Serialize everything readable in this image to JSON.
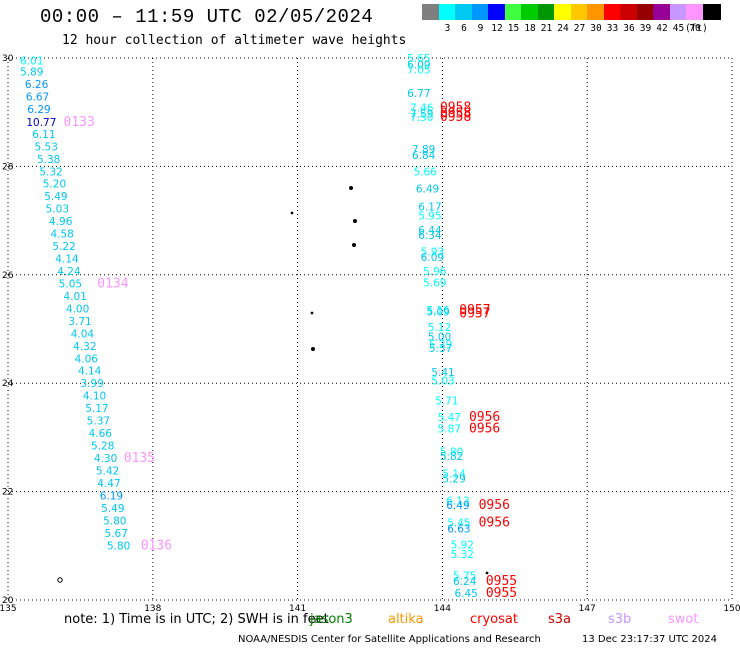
{
  "header": {
    "title": "00:00 – 11:59 UTC 02/05/2024",
    "subtitle": "12 hour collection of altimeter wave heights"
  },
  "legend": {
    "unit": "(ft)",
    "items": [
      {
        "label": "",
        "color": "#7f7f7f"
      },
      {
        "label": "3",
        "color": "#00ffff"
      },
      {
        "label": "6",
        "color": "#00c8f0"
      },
      {
        "label": "9",
        "color": "#0096ff"
      },
      {
        "label": "12",
        "color": "#0000ff"
      },
      {
        "label": "15",
        "color": "#40ff40"
      },
      {
        "label": "18",
        "color": "#00cc00"
      },
      {
        "label": "21",
        "color": "#009600"
      },
      {
        "label": "24",
        "color": "#ffff00"
      },
      {
        "label": "27",
        "color": "#ffc800"
      },
      {
        "label": "30",
        "color": "#ff9600"
      },
      {
        "label": "33",
        "color": "#ff0000"
      },
      {
        "label": "36",
        "color": "#cc0000"
      },
      {
        "label": "39",
        "color": "#960000"
      },
      {
        "label": "42",
        "color": "#960096"
      },
      {
        "label": "45",
        "color": "#c896ff"
      },
      {
        "label": "70",
        "color": "#ff96ff"
      },
      {
        "label": "",
        "color": "#000000"
      }
    ]
  },
  "map": {
    "lon_range": [
      135,
      150
    ],
    "lat_range": [
      20,
      30
    ],
    "lon_ticks": [
      "135",
      "138",
      "141",
      "144",
      "147",
      "150"
    ],
    "lat_ticks": [
      "30",
      "28",
      "26",
      "24",
      "22",
      "20"
    ],
    "grid": true
  },
  "tracks": {
    "left_values": [
      {
        "lat": 29.95,
        "lon": 135.25,
        "v": "6.01",
        "c": "#00ffff"
      },
      {
        "lat": 29.75,
        "lon": 135.25,
        "v": "5.89",
        "c": "#00c8f0"
      },
      {
        "lat": 29.52,
        "lon": 135.35,
        "v": "6.26",
        "c": "#0096ff"
      },
      {
        "lat": 29.29,
        "lon": 135.37,
        "v": "6.67",
        "c": "#0096ff"
      },
      {
        "lat": 29.06,
        "lon": 135.4,
        "v": "6.29",
        "c": "#0096ff"
      },
      {
        "lat": 28.82,
        "lon": 135.38,
        "v": "10.77",
        "c": "#0000c8"
      },
      {
        "lat": 28.6,
        "lon": 135.5,
        "v": "6.11",
        "c": "#00c8f0"
      },
      {
        "lat": 28.37,
        "lon": 135.55,
        "v": "5.53",
        "c": "#00c8f0"
      },
      {
        "lat": 28.14,
        "lon": 135.6,
        "v": "5.38",
        "c": "#00c8f0"
      },
      {
        "lat": 27.91,
        "lon": 135.65,
        "v": "5.32",
        "c": "#00c8f0"
      },
      {
        "lat": 27.68,
        "lon": 135.72,
        "v": "5.20",
        "c": "#00c8f0"
      },
      {
        "lat": 27.45,
        "lon": 135.75,
        "v": "5.49",
        "c": "#00c8f0"
      },
      {
        "lat": 27.22,
        "lon": 135.78,
        "v": "5.03",
        "c": "#00c8f0"
      },
      {
        "lat": 26.99,
        "lon": 135.85,
        "v": "4.96",
        "c": "#00c8f0"
      },
      {
        "lat": 26.76,
        "lon": 135.88,
        "v": "4.58",
        "c": "#00c8f0"
      },
      {
        "lat": 26.53,
        "lon": 135.92,
        "v": "5.22",
        "c": "#00c8f0"
      },
      {
        "lat": 26.3,
        "lon": 135.98,
        "v": "4.14",
        "c": "#00c8f0"
      },
      {
        "lat": 26.07,
        "lon": 136.02,
        "v": "4.24",
        "c": "#00c8f0"
      },
      {
        "lat": 25.84,
        "lon": 136.05,
        "v": "5.05",
        "c": "#00c8f0"
      },
      {
        "lat": 25.61,
        "lon": 136.15,
        "v": "4.01",
        "c": "#00c8f0"
      },
      {
        "lat": 25.38,
        "lon": 136.2,
        "v": "4.00",
        "c": "#00c8f0"
      },
      {
        "lat": 25.15,
        "lon": 136.25,
        "v": "3.71",
        "c": "#00c8f0"
      },
      {
        "lat": 24.92,
        "lon": 136.3,
        "v": "4.04",
        "c": "#00c8f0"
      },
      {
        "lat": 24.69,
        "lon": 136.35,
        "v": "4.32",
        "c": "#00c8f0"
      },
      {
        "lat": 24.46,
        "lon": 136.38,
        "v": "4.06",
        "c": "#00c8f0"
      },
      {
        "lat": 24.23,
        "lon": 136.45,
        "v": "4.14",
        "c": "#00c8f0"
      },
      {
        "lat": 24.0,
        "lon": 136.5,
        "v": "3.99",
        "c": "#00c8f0"
      },
      {
        "lat": 23.77,
        "lon": 136.55,
        "v": "4.10",
        "c": "#00c8f0"
      },
      {
        "lat": 23.54,
        "lon": 136.6,
        "v": "5.17",
        "c": "#00c8f0"
      },
      {
        "lat": 23.31,
        "lon": 136.63,
        "v": "5.37",
        "c": "#00c8f0"
      },
      {
        "lat": 23.08,
        "lon": 136.67,
        "v": "4.66",
        "c": "#00c8f0"
      },
      {
        "lat": 22.85,
        "lon": 136.72,
        "v": "5.28",
        "c": "#00c8f0"
      },
      {
        "lat": 22.62,
        "lon": 136.78,
        "v": "4.30",
        "c": "#00c8f0"
      },
      {
        "lat": 22.39,
        "lon": 136.82,
        "v": "5.42",
        "c": "#00c8f0"
      },
      {
        "lat": 22.16,
        "lon": 136.85,
        "v": "4.47",
        "c": "#00c8f0"
      },
      {
        "lat": 21.93,
        "lon": 136.9,
        "v": "6.19",
        "c": "#0096ff"
      },
      {
        "lat": 21.7,
        "lon": 136.93,
        "v": "5.49",
        "c": "#00c8f0"
      },
      {
        "lat": 21.47,
        "lon": 136.97,
        "v": "5.80",
        "c": "#00c8f0"
      },
      {
        "lat": 21.24,
        "lon": 137.0,
        "v": "5.67",
        "c": "#00c8f0"
      },
      {
        "lat": 21.01,
        "lon": 137.05,
        "v": "5.80",
        "c": "#00c8f0"
      }
    ],
    "left_times": [
      {
        "lat": 28.82,
        "lon": 136.15,
        "t": "0133",
        "c": "#ff96ff"
      },
      {
        "lat": 25.84,
        "lon": 136.85,
        "t": "0134",
        "c": "#ff96ff"
      },
      {
        "lat": 22.62,
        "lon": 137.4,
        "t": "0135",
        "c": "#ff96ff"
      },
      {
        "lat": 21.01,
        "lon": 137.75,
        "t": "0136",
        "c": "#ff96ff"
      }
    ],
    "right_values": [
      {
        "lat": 30.0,
        "lon": 143.27,
        "v": "5.65",
        "c": "#00ffff"
      },
      {
        "lat": 29.88,
        "lon": 143.27,
        "v": "6.09",
        "c": "#00c8f0"
      },
      {
        "lat": 29.79,
        "lon": 143.27,
        "v": "7.05",
        "c": "#00ffff"
      },
      {
        "lat": 29.35,
        "lon": 143.27,
        "v": "6.77",
        "c": "#00c8f0"
      },
      {
        "lat": 29.09,
        "lon": 143.33,
        "v": "7.46",
        "c": "#00ffff"
      },
      {
        "lat": 28.98,
        "lon": 143.33,
        "v": "7.59",
        "c": "#00c8f0"
      },
      {
        "lat": 28.91,
        "lon": 143.33,
        "v": "7.50",
        "c": "#00ffff"
      },
      {
        "lat": 28.32,
        "lon": 143.37,
        "v": "7.89",
        "c": "#00c8f0"
      },
      {
        "lat": 28.21,
        "lon": 143.37,
        "v": "6.84",
        "c": "#00c8f0"
      },
      {
        "lat": 27.91,
        "lon": 143.4,
        "v": "5.66",
        "c": "#00ffff"
      },
      {
        "lat": 27.59,
        "lon": 143.45,
        "v": "6.49",
        "c": "#00c8f0"
      },
      {
        "lat": 27.26,
        "lon": 143.5,
        "v": "6.17",
        "c": "#00c8f0"
      },
      {
        "lat": 27.09,
        "lon": 143.5,
        "v": "5.95",
        "c": "#00ffff"
      },
      {
        "lat": 26.83,
        "lon": 143.5,
        "v": "6.44",
        "c": "#00c8f0"
      },
      {
        "lat": 26.73,
        "lon": 143.5,
        "v": "6.34",
        "c": "#00c8f0"
      },
      {
        "lat": 26.43,
        "lon": 143.55,
        "v": "5.93",
        "c": "#00ffff"
      },
      {
        "lat": 26.33,
        "lon": 143.55,
        "v": "6.09",
        "c": "#00c8f0"
      },
      {
        "lat": 26.07,
        "lon": 143.6,
        "v": "5.96",
        "c": "#00ffff"
      },
      {
        "lat": 25.86,
        "lon": 143.6,
        "v": "5.69",
        "c": "#00ffff"
      },
      {
        "lat": 25.35,
        "lon": 143.67,
        "v": "5.16",
        "c": "#00ffff"
      },
      {
        "lat": 25.32,
        "lon": 143.67,
        "v": "5.09",
        "c": "#00c8f0"
      },
      {
        "lat": 25.04,
        "lon": 143.7,
        "v": "5.12",
        "c": "#00ffff"
      },
      {
        "lat": 24.86,
        "lon": 143.7,
        "v": "5.00",
        "c": "#00c8f0"
      },
      {
        "lat": 24.72,
        "lon": 143.72,
        "v": "5.29",
        "c": "#00ffff"
      },
      {
        "lat": 24.65,
        "lon": 143.72,
        "v": "5.37",
        "c": "#00c8f0"
      },
      {
        "lat": 24.21,
        "lon": 143.77,
        "v": "5.41",
        "c": "#00c8f0"
      },
      {
        "lat": 24.05,
        "lon": 143.77,
        "v": "5.03",
        "c": "#00ffff"
      },
      {
        "lat": 23.68,
        "lon": 143.85,
        "v": "5.71",
        "c": "#00ffff"
      },
      {
        "lat": 23.38,
        "lon": 143.9,
        "v": "5.47",
        "c": "#00ffff"
      },
      {
        "lat": 23.16,
        "lon": 143.9,
        "v": "5.87",
        "c": "#00ffff"
      },
      {
        "lat": 22.74,
        "lon": 143.95,
        "v": "5.80",
        "c": "#00ffff"
      },
      {
        "lat": 22.66,
        "lon": 143.95,
        "v": "5.82",
        "c": "#00c8f0"
      },
      {
        "lat": 22.33,
        "lon": 144.0,
        "v": "5.14",
        "c": "#00ffff"
      },
      {
        "lat": 22.24,
        "lon": 144.0,
        "v": "5.29",
        "c": "#00c8f0"
      },
      {
        "lat": 21.84,
        "lon": 144.08,
        "v": "6.13",
        "c": "#00ffff"
      },
      {
        "lat": 21.75,
        "lon": 144.08,
        "v": "6.49",
        "c": "#0096ff"
      },
      {
        "lat": 21.43,
        "lon": 144.1,
        "v": "5.45",
        "c": "#00ffff"
      },
      {
        "lat": 21.32,
        "lon": 144.1,
        "v": "6.63",
        "c": "#0096ff"
      },
      {
        "lat": 21.02,
        "lon": 144.17,
        "v": "5.92",
        "c": "#00ffff"
      },
      {
        "lat": 20.85,
        "lon": 144.17,
        "v": "5.32",
        "c": "#00ffff"
      },
      {
        "lat": 20.45,
        "lon": 144.22,
        "v": "5.75",
        "c": "#00ffff"
      },
      {
        "lat": 20.35,
        "lon": 144.22,
        "v": "6.24",
        "c": "#00c8f0"
      },
      {
        "lat": 20.13,
        "lon": 144.25,
        "v": "6.45",
        "c": "#00c8f0"
      }
    ],
    "right_times": [
      {
        "lat": 29.09,
        "lon": 143.95,
        "t": "0958",
        "c": "#ff0000"
      },
      {
        "lat": 28.98,
        "lon": 143.95,
        "t": "0958",
        "c": "#ff0000"
      },
      {
        "lat": 28.91,
        "lon": 143.95,
        "t": "0958",
        "c": "#ff0000"
      },
      {
        "lat": 25.35,
        "lon": 144.35,
        "t": "0957",
        "c": "#ff0000"
      },
      {
        "lat": 25.29,
        "lon": 144.35,
        "t": "0957",
        "c": "#ff0000"
      },
      {
        "lat": 23.38,
        "lon": 144.55,
        "t": "0956",
        "c": "#ff0000"
      },
      {
        "lat": 23.16,
        "lon": 144.55,
        "t": "0956",
        "c": "#ff0000"
      },
      {
        "lat": 21.75,
        "lon": 144.75,
        "t": "0956",
        "c": "#ff0000"
      },
      {
        "lat": 21.43,
        "lon": 144.75,
        "t": "0956",
        "c": "#ff0000"
      },
      {
        "lat": 20.35,
        "lon": 144.9,
        "t": "0955",
        "c": "#ff0000"
      },
      {
        "lat": 20.13,
        "lon": 144.9,
        "t": "0955",
        "c": "#ff0000"
      }
    ]
  },
  "note": {
    "prefix": "note:  1) Time is in UTC; 2) SWH is in feet",
    "satellites": [
      {
        "name": "jason3",
        "color": "#008000"
      },
      {
        "name": "altika",
        "color": "#ff9600"
      },
      {
        "name": "cryosat",
        "color": "#ff0000"
      },
      {
        "name": "s3a",
        "color": "#cc0000"
      },
      {
        "name": "s3b",
        "color": "#c896ff"
      },
      {
        "name": "swot",
        "color": "#ff96ff"
      }
    ]
  },
  "footer": {
    "credit": "NOAA/NESDIS Center for Satellite Applications and Research",
    "timestamp": "13 Dec 23:17:37 UTC 2024"
  }
}
